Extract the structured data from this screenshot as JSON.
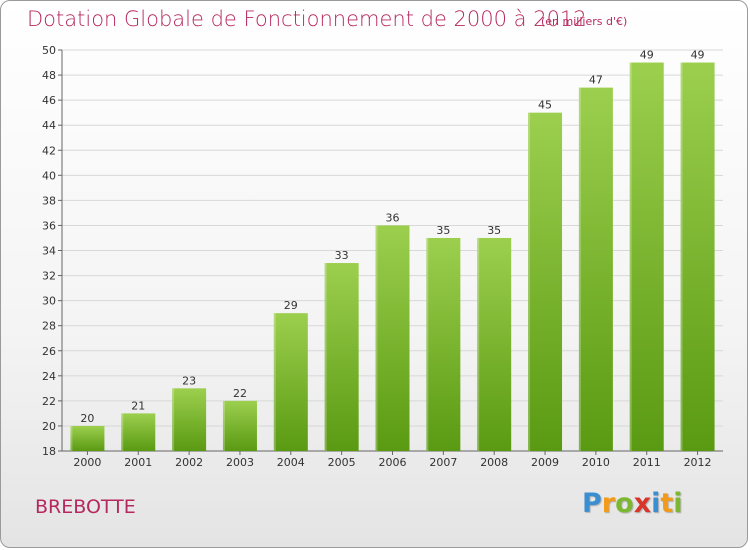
{
  "header": {
    "title": "Dotation Globale de Fonctionnement de 2000 à 2012",
    "subtitle": "(en milliers d'€)"
  },
  "footer": {
    "commune": "BREBOTTE",
    "logo_letters": [
      "P",
      "r",
      "o",
      "x",
      "i",
      "t",
      "i"
    ]
  },
  "colors": {
    "title": "#b5295f",
    "bar_top": "#9ccf4e",
    "bar_bottom": "#5a9a12",
    "grid": "#d8d8d8",
    "axis": "#666666"
  },
  "chart_data": {
    "type": "bar",
    "categories": [
      "2000",
      "2001",
      "2002",
      "2003",
      "2004",
      "2005",
      "2006",
      "2007",
      "2008",
      "2009",
      "2010",
      "2011",
      "2012"
    ],
    "series": [
      {
        "values": [
          20,
          21,
          23,
          22,
          29,
          33,
          36,
          35,
          35,
          45,
          47,
          49,
          49
        ]
      }
    ],
    "value_labels": [
      "20",
      "21",
      "23",
      "22",
      "29",
      "33",
      "36",
      "35",
      "35",
      "45",
      "47",
      "49",
      "49"
    ],
    "ylim": [
      18,
      50
    ],
    "yticks": [
      18,
      20,
      22,
      24,
      26,
      28,
      30,
      32,
      34,
      36,
      38,
      40,
      42,
      44,
      46,
      48,
      50
    ],
    "grid": "horizontal",
    "legend": "none"
  }
}
